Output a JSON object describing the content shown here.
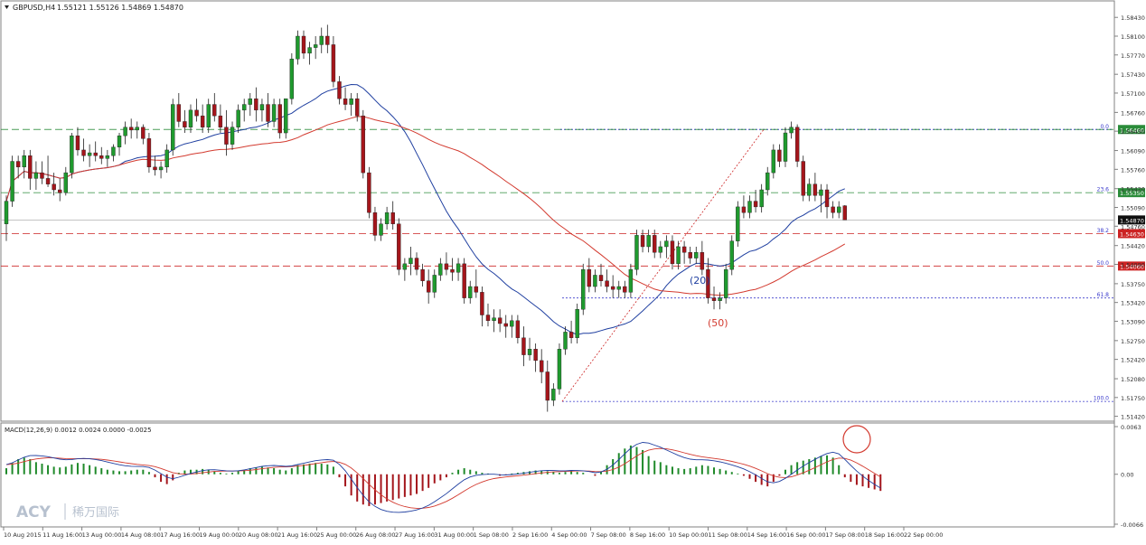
{
  "chart_data": [
    {
      "type": "candlestick",
      "title": "GBPUSD,H4  1.55121 1.55126 1.54869 1.54870",
      "symbol_header": "GBPUSD,H4",
      "ohlc_header": "1.55121 1.55126 1.54869 1.54870",
      "ylim": [
        1.5135,
        1.5864
      ],
      "y_ticks": [
        "1.58430",
        "1.58100",
        "1.57770",
        "1.57430",
        "1.57100",
        "1.56760",
        "1.56430",
        "1.56090",
        "1.55760",
        "1.55420",
        "1.55090",
        "1.54760",
        "1.54420",
        "1.54090",
        "1.53750",
        "1.53420",
        "1.53090",
        "1.52750",
        "1.52420",
        "1.52080",
        "1.51750",
        "1.51420"
      ],
      "x_ticks": [
        "10 Aug 2015",
        "11 Aug 16:00",
        "13 Aug 00:00",
        "14 Aug 08:00",
        "17 Aug 16:00",
        "19 Aug 00:00",
        "20 Aug 08:00",
        "21 Aug 16:00",
        "25 Aug 00:00",
        "26 Aug 08:00",
        "27 Aug 16:00",
        "31 Aug 00:00",
        "1 Sep 08:00",
        "2 Sep 16:00",
        "4 Sep 00:00",
        "7 Sep 08:00",
        "8 Sep 16:00",
        "10 Sep 00:00",
        "11 Sep 08:00",
        "14 Sep 16:00",
        "16 Sep 00:00",
        "17 Sep 08:00",
        "18 Sep 16:00",
        "22 Sep 00:00"
      ],
      "candles": [
        [
          1.548,
          1.553,
          1.545,
          1.552
        ],
        [
          1.552,
          1.56,
          1.551,
          1.559
        ],
        [
          1.559,
          1.56,
          1.556,
          1.558
        ],
        [
          1.558,
          1.561,
          1.556,
          1.56
        ],
        [
          1.56,
          1.561,
          1.554,
          1.556
        ],
        [
          1.556,
          1.559,
          1.554,
          1.557
        ],
        [
          1.557,
          1.559,
          1.555,
          1.556
        ],
        [
          1.556,
          1.56,
          1.5545,
          1.555
        ],
        [
          1.555,
          1.557,
          1.553,
          1.554
        ],
        [
          1.554,
          1.556,
          1.552,
          1.5535
        ],
        [
          1.5535,
          1.558,
          1.553,
          1.557
        ],
        [
          1.557,
          1.564,
          1.556,
          1.5635
        ],
        [
          1.5635,
          1.565,
          1.56,
          1.561
        ],
        [
          1.561,
          1.563,
          1.559,
          1.56
        ],
        [
          1.56,
          1.562,
          1.558,
          1.5605
        ],
        [
          1.5605,
          1.5625,
          1.559,
          1.56
        ],
        [
          1.56,
          1.5615,
          1.5585,
          1.5595
        ],
        [
          1.5595,
          1.561,
          1.558,
          1.56
        ],
        [
          1.56,
          1.562,
          1.559,
          1.5615
        ],
        [
          1.5615,
          1.564,
          1.56,
          1.5635
        ],
        [
          1.5635,
          1.566,
          1.562,
          1.565
        ],
        [
          1.565,
          1.5665,
          1.563,
          1.5645
        ],
        [
          1.5645,
          1.566,
          1.563,
          1.565
        ],
        [
          1.565,
          1.5655,
          1.562,
          1.563
        ],
        [
          1.563,
          1.564,
          1.557,
          1.558
        ],
        [
          1.558,
          1.56,
          1.5565,
          1.5575
        ],
        [
          1.5575,
          1.559,
          1.556,
          1.558
        ],
        [
          1.558,
          1.562,
          1.557,
          1.561
        ],
        [
          1.561,
          1.57,
          1.56,
          1.569
        ],
        [
          1.569,
          1.571,
          1.565,
          1.566
        ],
        [
          1.566,
          1.568,
          1.564,
          1.565
        ],
        [
          1.565,
          1.569,
          1.564,
          1.568
        ],
        [
          1.568,
          1.57,
          1.566,
          1.567
        ],
        [
          1.567,
          1.569,
          1.564,
          1.565
        ],
        [
          1.565,
          1.57,
          1.564,
          1.569
        ],
        [
          1.569,
          1.571,
          1.566,
          1.567
        ],
        [
          1.567,
          1.569,
          1.564,
          1.565
        ],
        [
          1.565,
          1.568,
          1.56,
          1.562
        ],
        [
          1.562,
          1.566,
          1.561,
          1.565
        ],
        [
          1.565,
          1.569,
          1.564,
          1.568
        ],
        [
          1.568,
          1.57,
          1.566,
          1.569
        ],
        [
          1.569,
          1.571,
          1.567,
          1.57
        ],
        [
          1.57,
          1.572,
          1.566,
          1.568
        ],
        [
          1.568,
          1.57,
          1.566,
          1.569
        ],
        [
          1.569,
          1.571,
          1.565,
          1.566
        ],
        [
          1.566,
          1.57,
          1.565,
          1.569
        ],
        [
          1.569,
          1.57,
          1.563,
          1.564
        ],
        [
          1.564,
          1.57,
          1.563,
          1.57
        ],
        [
          1.57,
          1.578,
          1.569,
          1.577
        ],
        [
          1.577,
          1.582,
          1.576,
          1.581
        ],
        [
          1.581,
          1.582,
          1.577,
          1.578
        ],
        [
          1.578,
          1.58,
          1.576,
          1.579
        ],
        [
          1.579,
          1.581,
          1.577,
          1.5795
        ],
        [
          1.5795,
          1.5825,
          1.578,
          1.581
        ],
        [
          1.581,
          1.583,
          1.578,
          1.5795
        ],
        [
          1.5795,
          1.581,
          1.572,
          1.573
        ],
        [
          1.573,
          1.574,
          1.569,
          1.57
        ],
        [
          1.57,
          1.572,
          1.568,
          1.569
        ],
        [
          1.569,
          1.571,
          1.567,
          1.57
        ],
        [
          1.57,
          1.571,
          1.566,
          1.567
        ],
        [
          1.567,
          1.568,
          1.556,
          1.557
        ],
        [
          1.557,
          1.558,
          1.549,
          1.55
        ],
        [
          1.55,
          1.551,
          1.545,
          1.546
        ],
        [
          1.546,
          1.549,
          1.545,
          1.548
        ],
        [
          1.548,
          1.551,
          1.547,
          1.55
        ],
        [
          1.55,
          1.552,
          1.547,
          1.548
        ],
        [
          1.548,
          1.549,
          1.539,
          1.54
        ],
        [
          1.54,
          1.542,
          1.538,
          1.541
        ],
        [
          1.541,
          1.544,
          1.539,
          1.542
        ],
        [
          1.542,
          1.543,
          1.539,
          1.54
        ],
        [
          1.54,
          1.541,
          1.537,
          1.538
        ],
        [
          1.538,
          1.54,
          1.534,
          1.536
        ],
        [
          1.536,
          1.54,
          1.535,
          1.539
        ],
        [
          1.539,
          1.542,
          1.538,
          1.541
        ],
        [
          1.541,
          1.543,
          1.539,
          1.54
        ],
        [
          1.54,
          1.542,
          1.538,
          1.5395
        ],
        [
          1.5395,
          1.542,
          1.538,
          1.541
        ],
        [
          1.541,
          1.542,
          1.534,
          1.535
        ],
        [
          1.535,
          1.538,
          1.534,
          1.537
        ],
        [
          1.537,
          1.54,
          1.535,
          1.536
        ],
        [
          1.536,
          1.537,
          1.53,
          1.532
        ],
        [
          1.532,
          1.534,
          1.53,
          1.531
        ],
        [
          1.531,
          1.533,
          1.529,
          1.5315
        ],
        [
          1.5315,
          1.533,
          1.529,
          1.5305
        ],
        [
          1.5305,
          1.532,
          1.528,
          1.53
        ],
        [
          1.53,
          1.532,
          1.528,
          1.531
        ],
        [
          1.531,
          1.532,
          1.527,
          1.528
        ],
        [
          1.528,
          1.53,
          1.523,
          1.525
        ],
        [
          1.525,
          1.528,
          1.524,
          1.526
        ],
        [
          1.526,
          1.527,
          1.522,
          1.524
        ],
        [
          1.524,
          1.526,
          1.52,
          1.522
        ],
        [
          1.522,
          1.524,
          1.515,
          1.517
        ],
        [
          1.517,
          1.52,
          1.516,
          1.519
        ],
        [
          1.519,
          1.527,
          1.518,
          1.526
        ],
        [
          1.526,
          1.53,
          1.525,
          1.529
        ],
        [
          1.529,
          1.531,
          1.527,
          1.528
        ],
        [
          1.528,
          1.534,
          1.527,
          1.533
        ],
        [
          1.533,
          1.541,
          1.532,
          1.54
        ],
        [
          1.54,
          1.542,
          1.536,
          1.537
        ],
        [
          1.537,
          1.54,
          1.536,
          1.539
        ],
        [
          1.539,
          1.541,
          1.537,
          1.538
        ],
        [
          1.538,
          1.54,
          1.536,
          1.537
        ],
        [
          1.537,
          1.539,
          1.535,
          1.5365
        ],
        [
          1.5365,
          1.538,
          1.535,
          1.537
        ],
        [
          1.537,
          1.538,
          1.535,
          1.536
        ],
        [
          1.536,
          1.541,
          1.535,
          1.54
        ],
        [
          1.54,
          1.547,
          1.539,
          1.546
        ],
        [
          1.546,
          1.547,
          1.543,
          1.544
        ],
        [
          1.544,
          1.547,
          1.543,
          1.546
        ],
        [
          1.546,
          1.547,
          1.542,
          1.543
        ],
        [
          1.543,
          1.545,
          1.542,
          1.544
        ],
        [
          1.544,
          1.546,
          1.542,
          1.545
        ],
        [
          1.545,
          1.546,
          1.54,
          1.541
        ],
        [
          1.541,
          1.545,
          1.54,
          1.544
        ],
        [
          1.544,
          1.545,
          1.541,
          1.543
        ],
        [
          1.543,
          1.544,
          1.541,
          1.542
        ],
        [
          1.542,
          1.544,
          1.541,
          1.543
        ],
        [
          1.543,
          1.545,
          1.539,
          1.54
        ],
        [
          1.54,
          1.542,
          1.534,
          1.535
        ],
        [
          1.535,
          1.537,
          1.533,
          1.5345
        ],
        [
          1.5345,
          1.536,
          1.533,
          1.535
        ],
        [
          1.535,
          1.541,
          1.534,
          1.54
        ],
        [
          1.54,
          1.546,
          1.539,
          1.545
        ],
        [
          1.545,
          1.552,
          1.544,
          1.551
        ],
        [
          1.551,
          1.553,
          1.549,
          1.55
        ],
        [
          1.55,
          1.553,
          1.549,
          1.552
        ],
        [
          1.552,
          1.554,
          1.55,
          1.551
        ],
        [
          1.551,
          1.555,
          1.55,
          1.554
        ],
        [
          1.554,
          1.558,
          1.553,
          1.557
        ],
        [
          1.557,
          1.562,
          1.556,
          1.561
        ],
        [
          1.561,
          1.562,
          1.558,
          1.559
        ],
        [
          1.559,
          1.565,
          1.558,
          1.564
        ],
        [
          1.564,
          1.566,
          1.563,
          1.565
        ],
        [
          1.565,
          1.5655,
          1.558,
          1.559
        ],
        [
          1.559,
          1.56,
          1.552,
          1.553
        ],
        [
          1.553,
          1.556,
          1.552,
          1.555
        ],
        [
          1.555,
          1.557,
          1.552,
          1.553
        ],
        [
          1.553,
          1.555,
          1.55,
          1.554
        ],
        [
          1.554,
          1.555,
          1.549,
          1.551
        ],
        [
          1.551,
          1.552,
          1.549,
          1.55
        ],
        [
          1.55,
          1.552,
          1.549,
          1.551
        ],
        [
          1.5512,
          1.5513,
          1.5487,
          1.5487
        ]
      ],
      "lines": {
        "ma20": {
          "label": "(20)",
          "color": "#1f3fa0"
        },
        "ma50": {
          "label": "(50)",
          "color": "#d33a2f"
        }
      },
      "fibonacci": [
        {
          "level_label": "0.0",
          "price": 1.5646,
          "price_label": "1.56460",
          "color": "#2b8c3a"
        },
        {
          "level_label": "23.6",
          "price": 1.5535,
          "price_label": "1.55350",
          "color": "#2b8c3a"
        },
        {
          "level_label": "38.2",
          "price": 1.5463,
          "price_label": "1.54630",
          "color": "#cc2222"
        },
        {
          "level_label": "50.0",
          "price": 1.5406,
          "price_label": "1.54060",
          "color": "#cc2222"
        },
        {
          "level_label": "61.8",
          "price": 1.535,
          "price_label": "",
          "color": "#3a3acc"
        },
        {
          "level_label": "100.0",
          "price": 1.5168,
          "price_label": "",
          "color": "#3a3acc"
        }
      ],
      "current_price_label": "1.54870",
      "current_price": 1.5487
    },
    {
      "type": "histogram",
      "title": "MACD(12,26,9) 0.0012 0.0024 0.0000 -0.0025",
      "y_ticks": [
        "0.0063",
        "0.00",
        "-0.0066"
      ],
      "ylim": [
        -0.0066,
        0.0063
      ],
      "histogram": [
        0.0008,
        0.0015,
        0.002,
        0.0022,
        0.002,
        0.0016,
        0.0014,
        0.0012,
        0.001,
        0.0009,
        0.001,
        0.0013,
        0.0015,
        0.0014,
        0.0012,
        0.001,
        0.0008,
        0.0006,
        0.0005,
        0.0004,
        0.0004,
        0.0005,
        0.0006,
        0.0006,
        0.0003,
        -0.0004,
        -0.001,
        -0.0013,
        -0.0008,
        0.0002,
        0.0005,
        0.0006,
        0.0006,
        0.0007,
        0.0006,
        0.0004,
        0.0002,
        0.0001,
        0.0002,
        0.0004,
        0.0006,
        0.0008,
        0.0009,
        0.001,
        0.0009,
        0.0008,
        0.0006,
        0.0005,
        0.0008,
        0.0012,
        0.0013,
        0.0014,
        0.0015,
        0.0014,
        0.0013,
        0.001,
        -0.0004,
        -0.0016,
        -0.0028,
        -0.0036,
        -0.004,
        -0.0042,
        -0.004,
        -0.0038,
        -0.0036,
        -0.0034,
        -0.0032,
        -0.003,
        -0.0028,
        -0.0026,
        -0.0022,
        -0.0018,
        -0.0012,
        -0.0008,
        -0.0004,
        0.0002,
        0.0006,
        0.0008,
        0.0006,
        0.0004,
        0.0002,
        0.0001,
        0.0,
        -0.0002,
        -0.0001,
        0.0001,
        0.0002,
        0.0003,
        0.0004,
        0.0005,
        0.0005,
        0.0004,
        0.0003,
        0.0002,
        0.0003,
        0.0004,
        0.0003,
        0.0002,
        0.0,
        -0.0002,
        0.0004,
        0.0012,
        0.002,
        0.0028,
        0.0034,
        0.0038,
        0.0036,
        0.0032,
        0.0024,
        0.0018,
        0.0016,
        0.0012,
        0.001,
        0.0008,
        0.0007,
        0.0008,
        0.001,
        0.0012,
        0.0011,
        0.0009,
        0.0007,
        0.0005,
        0.0003,
        0.0001,
        -0.0002,
        -0.0006,
        -0.001,
        -0.0014,
        -0.0016,
        -0.001,
        -0.0002,
        0.0006,
        0.0012,
        0.0016,
        0.0018,
        0.002,
        0.0022,
        0.0024,
        0.0025,
        0.0022,
        0.0012,
        -0.0004,
        -0.001,
        -0.0014,
        -0.0016,
        -0.0018,
        -0.002,
        -0.0022
      ],
      "signal_color": "#1f3fa0",
      "macd_color": "#d33a2f"
    }
  ],
  "watermark": {
    "brand": "ACY",
    "cn": "稀万国际"
  }
}
